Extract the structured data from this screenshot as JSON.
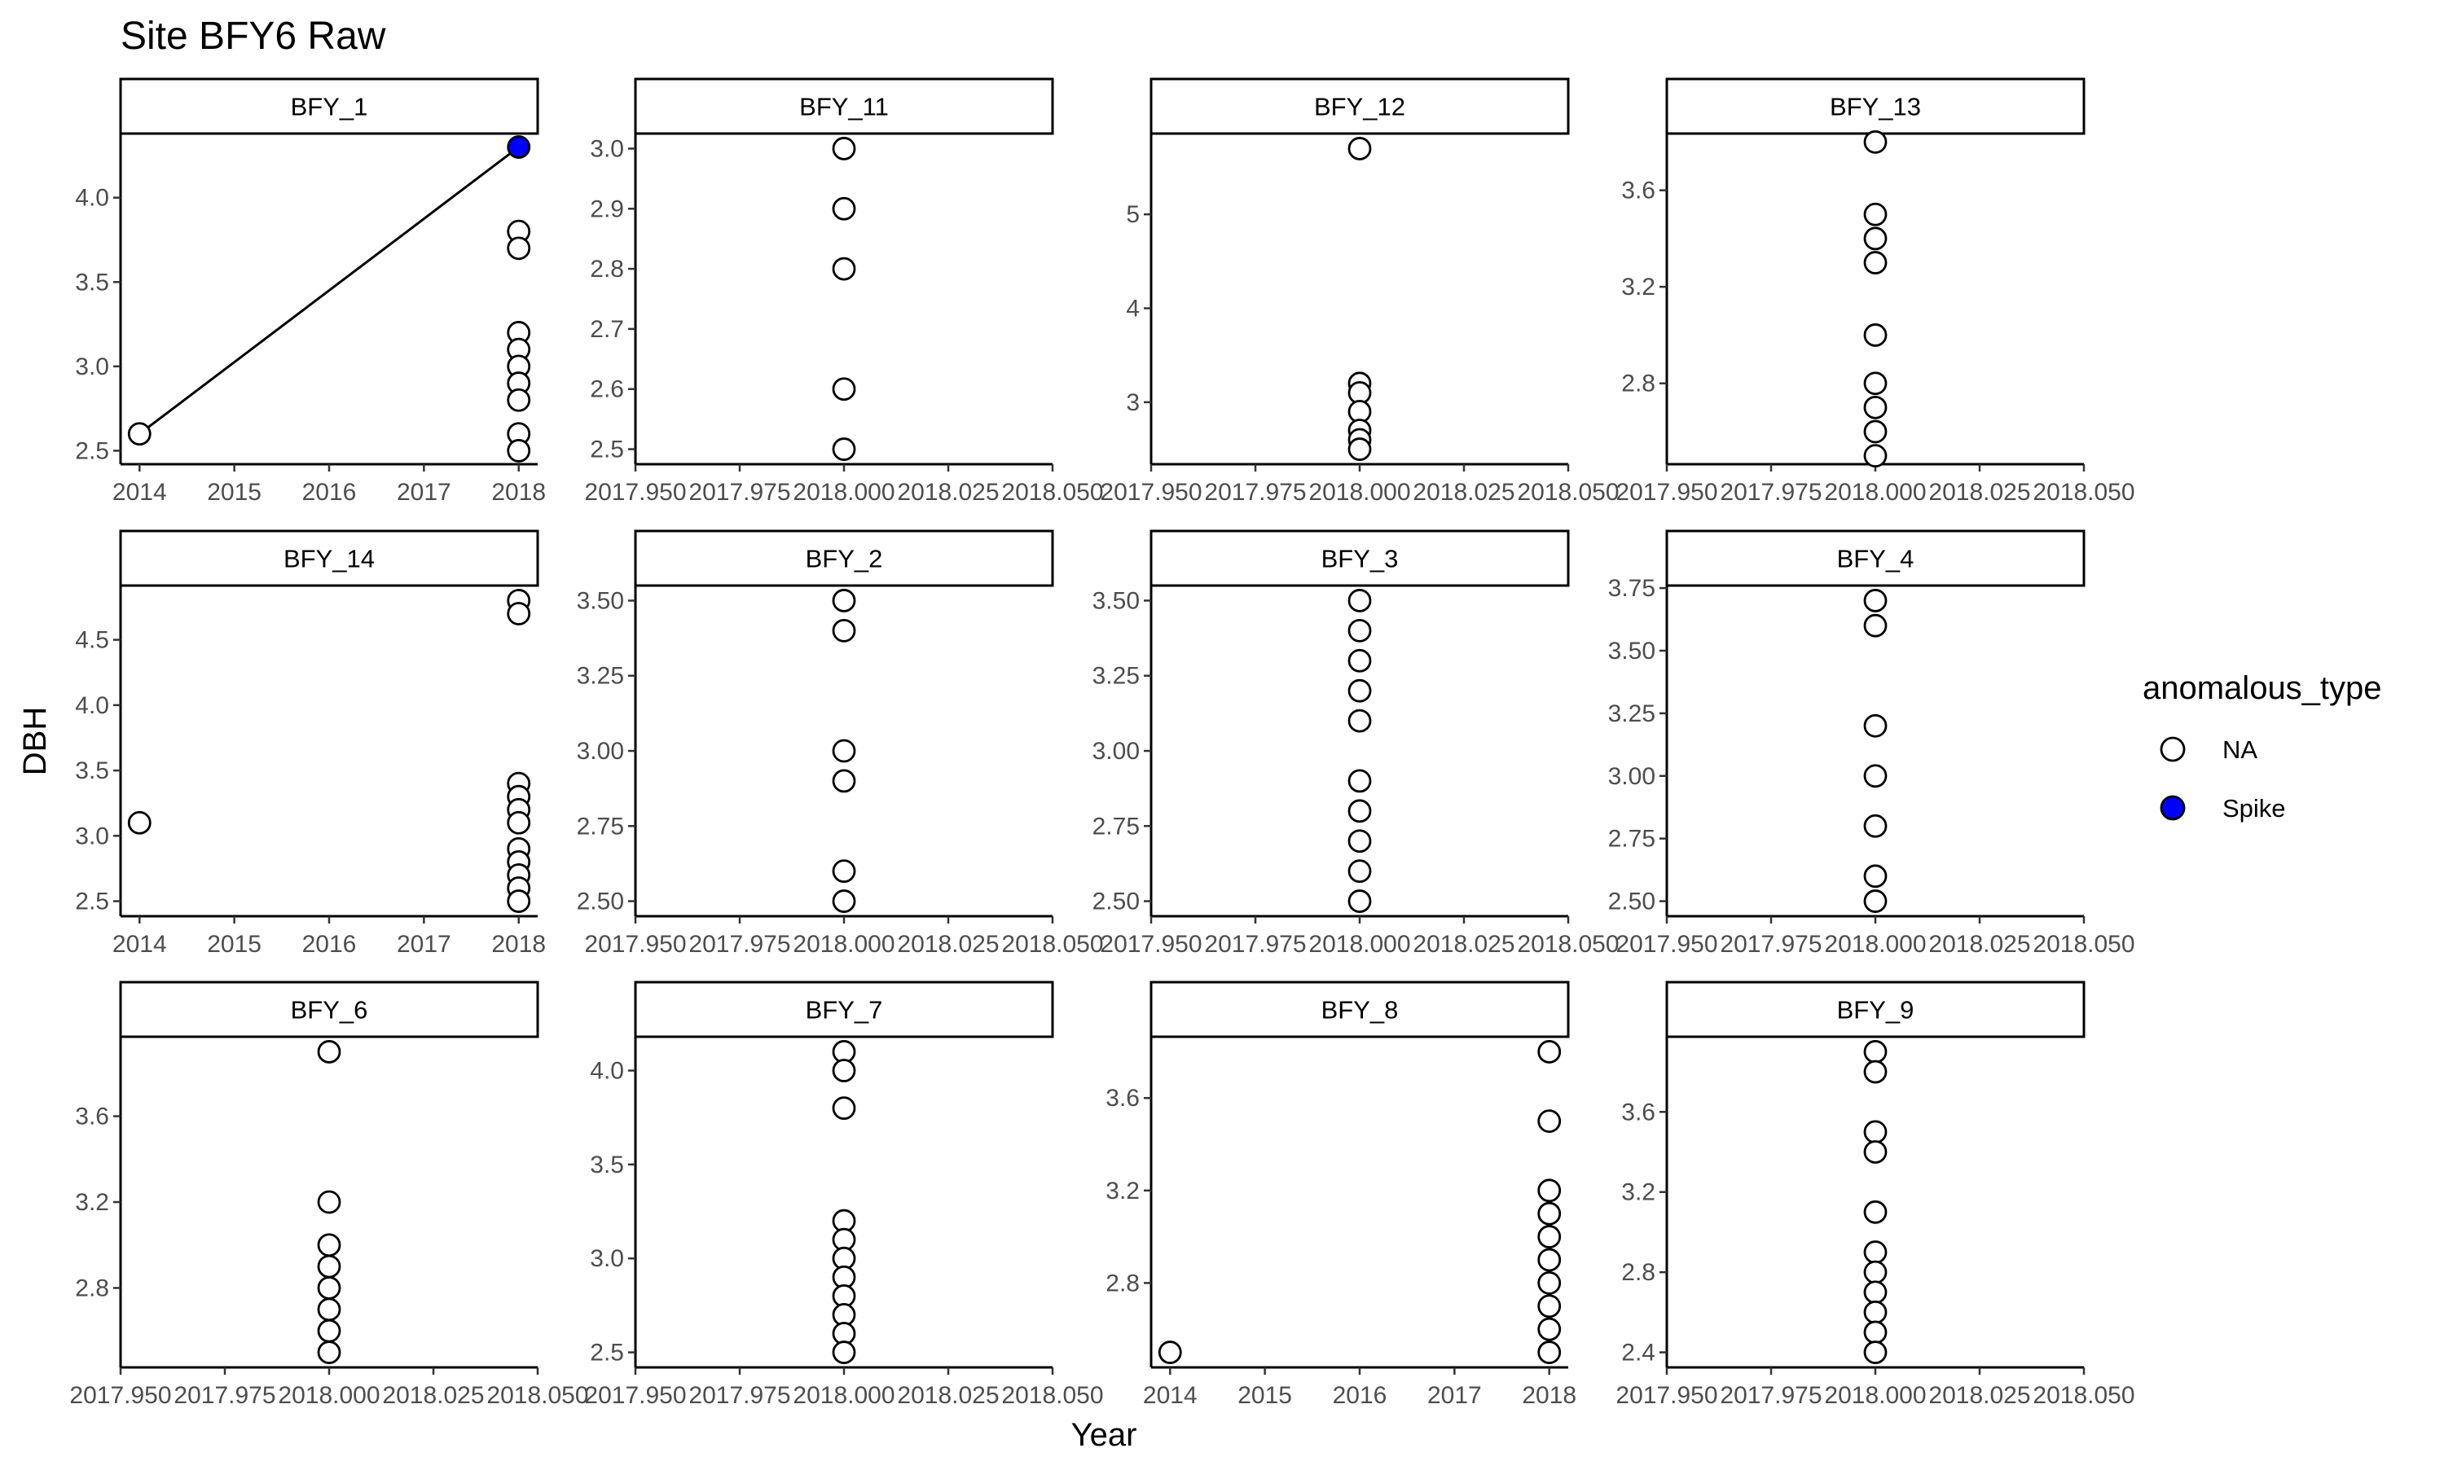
{
  "chart_data": {
    "type": "scatter",
    "title": "Site BFY6 Raw",
    "xlabel": "Year",
    "ylabel": "DBH",
    "grid": false,
    "legend": {
      "title": "anomalous_type",
      "position": "right",
      "entries": [
        {
          "label": "NA",
          "fill": "#ffffff"
        },
        {
          "label": "Spike",
          "fill": "#0000ff"
        }
      ]
    },
    "panels": [
      {
        "name": "BFY_1",
        "xlim": [
          2013.8,
          2018.2
        ],
        "ylim": [
          2.42,
          4.38
        ],
        "xticks": [
          "2014",
          "2015",
          "2016",
          "2017",
          "2018"
        ],
        "xtick_values": [
          2014,
          2015,
          2016,
          2017,
          2018
        ],
        "yticks": [
          "2.5",
          "3.0",
          "3.5",
          "4.0"
        ],
        "ytick_values": [
          2.5,
          3.0,
          3.5,
          4.0
        ],
        "line": [
          [
            2014,
            2.6
          ],
          [
            2018,
            4.3
          ]
        ],
        "points": [
          [
            2014,
            2.6,
            "NA"
          ],
          [
            2018,
            4.3,
            "Spike"
          ],
          [
            2018,
            3.8,
            "NA"
          ],
          [
            2018,
            3.7,
            "NA"
          ],
          [
            2018,
            3.2,
            "NA"
          ],
          [
            2018,
            3.1,
            "NA"
          ],
          [
            2018,
            3.0,
            "NA"
          ],
          [
            2018,
            2.9,
            "NA"
          ],
          [
            2018,
            2.8,
            "NA"
          ],
          [
            2018,
            2.6,
            "NA"
          ],
          [
            2018,
            2.5,
            "NA"
          ]
        ]
      },
      {
        "name": "BFY_11",
        "xlim": [
          2017.95,
          2018.05
        ],
        "ylim": [
          2.475,
          3.025
        ],
        "xticks": [
          "2017.950",
          "2017.975",
          "2018.000",
          "2018.025",
          "2018.050"
        ],
        "xtick_values": [
          2017.95,
          2017.975,
          2018.0,
          2018.025,
          2018.05
        ],
        "yticks": [
          "2.5",
          "2.6",
          "2.7",
          "2.8",
          "2.9",
          "3.0"
        ],
        "ytick_values": [
          2.5,
          2.6,
          2.7,
          2.8,
          2.9,
          3.0
        ],
        "points": [
          [
            2018,
            3.0,
            "NA"
          ],
          [
            2018,
            2.9,
            "NA"
          ],
          [
            2018,
            2.8,
            "NA"
          ],
          [
            2018,
            2.6,
            "NA"
          ],
          [
            2018,
            2.5,
            "NA"
          ]
        ]
      },
      {
        "name": "BFY_12",
        "xlim": [
          2017.95,
          2018.05
        ],
        "ylim": [
          2.34,
          5.86
        ],
        "xticks": [
          "2017.950",
          "2017.975",
          "2018.000",
          "2018.025",
          "2018.050"
        ],
        "xtick_values": [
          2017.95,
          2017.975,
          2018.0,
          2018.025,
          2018.05
        ],
        "yticks": [
          "3",
          "4",
          "5"
        ],
        "ytick_values": [
          3,
          4,
          5
        ],
        "points": [
          [
            2018,
            5.7,
            "NA"
          ],
          [
            2018,
            3.2,
            "NA"
          ],
          [
            2018,
            3.1,
            "NA"
          ],
          [
            2018,
            2.9,
            "NA"
          ],
          [
            2018,
            2.7,
            "NA"
          ],
          [
            2018,
            2.6,
            "NA"
          ],
          [
            2018,
            2.5,
            "NA"
          ]
        ]
      },
      {
        "name": "BFY_13",
        "xlim": [
          2017.95,
          2018.05
        ],
        "ylim": [
          2.465,
          3.835
        ],
        "xticks": [
          "2017.950",
          "2017.975",
          "2018.000",
          "2018.025",
          "2018.050"
        ],
        "xtick_values": [
          2017.95,
          2017.975,
          2018.0,
          2018.025,
          2018.05
        ],
        "yticks": [
          "2.8",
          "3.2",
          "3.6"
        ],
        "ytick_values": [
          2.8,
          3.2,
          3.6
        ],
        "points": [
          [
            2018,
            3.8,
            "NA"
          ],
          [
            2018,
            3.5,
            "NA"
          ],
          [
            2018,
            3.4,
            "NA"
          ],
          [
            2018,
            3.3,
            "NA"
          ],
          [
            2018,
            3.0,
            "NA"
          ],
          [
            2018,
            2.8,
            "NA"
          ],
          [
            2018,
            2.7,
            "NA"
          ],
          [
            2018,
            2.6,
            "NA"
          ],
          [
            2018,
            2.5,
            "NA"
          ]
        ]
      },
      {
        "name": "BFY_14",
        "xlim": [
          2013.8,
          2018.2
        ],
        "ylim": [
          2.385,
          4.915
        ],
        "xticks": [
          "2014",
          "2015",
          "2016",
          "2017",
          "2018"
        ],
        "xtick_values": [
          2014,
          2015,
          2016,
          2017,
          2018
        ],
        "yticks": [
          "2.5",
          "3.0",
          "3.5",
          "4.0",
          "4.5"
        ],
        "ytick_values": [
          2.5,
          3.0,
          3.5,
          4.0,
          4.5
        ],
        "points": [
          [
            2014,
            3.1,
            "NA"
          ],
          [
            2018,
            4.8,
            "NA"
          ],
          [
            2018,
            4.7,
            "NA"
          ],
          [
            2018,
            3.4,
            "NA"
          ],
          [
            2018,
            3.3,
            "NA"
          ],
          [
            2018,
            3.2,
            "NA"
          ],
          [
            2018,
            3.1,
            "NA"
          ],
          [
            2018,
            2.9,
            "NA"
          ],
          [
            2018,
            2.8,
            "NA"
          ],
          [
            2018,
            2.7,
            "NA"
          ],
          [
            2018,
            2.6,
            "NA"
          ],
          [
            2018,
            2.5,
            "NA"
          ]
        ]
      },
      {
        "name": "BFY_2",
        "xlim": [
          2017.95,
          2018.05
        ],
        "ylim": [
          2.45,
          3.55
        ],
        "xticks": [
          "2017.950",
          "2017.975",
          "2018.000",
          "2018.025",
          "2018.050"
        ],
        "xtick_values": [
          2017.95,
          2017.975,
          2018.0,
          2018.025,
          2018.05
        ],
        "yticks": [
          "2.50",
          "2.75",
          "3.00",
          "3.25",
          "3.50"
        ],
        "ytick_values": [
          2.5,
          2.75,
          3.0,
          3.25,
          3.5
        ],
        "points": [
          [
            2018,
            3.5,
            "NA"
          ],
          [
            2018,
            3.4,
            "NA"
          ],
          [
            2018,
            3.0,
            "NA"
          ],
          [
            2018,
            2.9,
            "NA"
          ],
          [
            2018,
            2.6,
            "NA"
          ],
          [
            2018,
            2.5,
            "NA"
          ]
        ]
      },
      {
        "name": "BFY_3",
        "xlim": [
          2017.95,
          2018.05
        ],
        "ylim": [
          2.45,
          3.55
        ],
        "xticks": [
          "2017.950",
          "2017.975",
          "2018.000",
          "2018.025",
          "2018.050"
        ],
        "xtick_values": [
          2017.95,
          2017.975,
          2018.0,
          2018.025,
          2018.05
        ],
        "yticks": [
          "2.50",
          "2.75",
          "3.00",
          "3.25",
          "3.50"
        ],
        "ytick_values": [
          2.5,
          2.75,
          3.0,
          3.25,
          3.5
        ],
        "points": [
          [
            2018,
            3.5,
            "NA"
          ],
          [
            2018,
            3.4,
            "NA"
          ],
          [
            2018,
            3.3,
            "NA"
          ],
          [
            2018,
            3.2,
            "NA"
          ],
          [
            2018,
            3.1,
            "NA"
          ],
          [
            2018,
            2.9,
            "NA"
          ],
          [
            2018,
            2.8,
            "NA"
          ],
          [
            2018,
            2.7,
            "NA"
          ],
          [
            2018,
            2.6,
            "NA"
          ],
          [
            2018,
            2.5,
            "NA"
          ]
        ]
      },
      {
        "name": "BFY_4",
        "xlim": [
          2017.95,
          2018.05
        ],
        "ylim": [
          2.44,
          3.76
        ],
        "xticks": [
          "2017.950",
          "2017.975",
          "2018.000",
          "2018.025",
          "2018.050"
        ],
        "xtick_values": [
          2017.95,
          2017.975,
          2018.0,
          2018.025,
          2018.05
        ],
        "yticks": [
          "2.50",
          "2.75",
          "3.00",
          "3.25",
          "3.50",
          "3.75"
        ],
        "ytick_values": [
          2.5,
          2.75,
          3.0,
          3.25,
          3.5,
          3.75
        ],
        "points": [
          [
            2018,
            3.7,
            "NA"
          ],
          [
            2018,
            3.6,
            "NA"
          ],
          [
            2018,
            3.2,
            "NA"
          ],
          [
            2018,
            3.0,
            "NA"
          ],
          [
            2018,
            2.8,
            "NA"
          ],
          [
            2018,
            2.6,
            "NA"
          ],
          [
            2018,
            2.5,
            "NA"
          ]
        ]
      },
      {
        "name": "BFY_6",
        "xlim": [
          2017.95,
          2018.05
        ],
        "ylim": [
          2.43,
          3.97
        ],
        "xticks": [
          "2017.950",
          "2017.975",
          "2018.000",
          "2018.025",
          "2018.050"
        ],
        "xtick_values": [
          2017.95,
          2017.975,
          2018.0,
          2018.025,
          2018.05
        ],
        "yticks": [
          "2.8",
          "3.2",
          "3.6"
        ],
        "ytick_values": [
          2.8,
          3.2,
          3.6
        ],
        "points": [
          [
            2018,
            3.9,
            "NA"
          ],
          [
            2018,
            3.2,
            "NA"
          ],
          [
            2018,
            3.0,
            "NA"
          ],
          [
            2018,
            2.9,
            "NA"
          ],
          [
            2018,
            2.8,
            "NA"
          ],
          [
            2018,
            2.7,
            "NA"
          ],
          [
            2018,
            2.6,
            "NA"
          ],
          [
            2018,
            2.5,
            "NA"
          ]
        ]
      },
      {
        "name": "BFY_7",
        "xlim": [
          2017.95,
          2018.05
        ],
        "ylim": [
          2.42,
          4.18
        ],
        "xticks": [
          "2017.950",
          "2017.975",
          "2018.000",
          "2018.025",
          "2018.050"
        ],
        "xtick_values": [
          2017.95,
          2017.975,
          2018.0,
          2018.025,
          2018.05
        ],
        "yticks": [
          "2.5",
          "3.0",
          "3.5",
          "4.0"
        ],
        "ytick_values": [
          2.5,
          3.0,
          3.5,
          4.0
        ],
        "points": [
          [
            2018,
            4.1,
            "NA"
          ],
          [
            2018,
            4.0,
            "NA"
          ],
          [
            2018,
            3.8,
            "NA"
          ],
          [
            2018,
            3.2,
            "NA"
          ],
          [
            2018,
            3.1,
            "NA"
          ],
          [
            2018,
            3.0,
            "NA"
          ],
          [
            2018,
            2.9,
            "NA"
          ],
          [
            2018,
            2.8,
            "NA"
          ],
          [
            2018,
            2.7,
            "NA"
          ],
          [
            2018,
            2.6,
            "NA"
          ],
          [
            2018,
            2.5,
            "NA"
          ]
        ]
      },
      {
        "name": "BFY_8",
        "xlim": [
          2013.8,
          2018.2
        ],
        "ylim": [
          2.435,
          3.865
        ],
        "xticks": [
          "2014",
          "2015",
          "2016",
          "2017",
          "2018"
        ],
        "xtick_values": [
          2014,
          2015,
          2016,
          2017,
          2018
        ],
        "yticks": [
          "2.8",
          "3.2",
          "3.6"
        ],
        "ytick_values": [
          2.8,
          3.2,
          3.6
        ],
        "points": [
          [
            2014,
            2.5,
            "NA"
          ],
          [
            2018,
            3.8,
            "NA"
          ],
          [
            2018,
            3.5,
            "NA"
          ],
          [
            2018,
            3.2,
            "NA"
          ],
          [
            2018,
            3.1,
            "NA"
          ],
          [
            2018,
            3.0,
            "NA"
          ],
          [
            2018,
            2.9,
            "NA"
          ],
          [
            2018,
            2.8,
            "NA"
          ],
          [
            2018,
            2.7,
            "NA"
          ],
          [
            2018,
            2.6,
            "NA"
          ],
          [
            2018,
            2.5,
            "NA"
          ]
        ]
      },
      {
        "name": "BFY_9",
        "xlim": [
          2017.95,
          2018.05
        ],
        "ylim": [
          2.325,
          3.975
        ],
        "xticks": [
          "2017.950",
          "2017.975",
          "2018.000",
          "2018.025",
          "2018.050"
        ],
        "xtick_values": [
          2017.95,
          2017.975,
          2018.0,
          2018.025,
          2018.05
        ],
        "yticks": [
          "2.4",
          "2.8",
          "3.2",
          "3.6"
        ],
        "ytick_values": [
          2.4,
          2.8,
          3.2,
          3.6
        ],
        "points": [
          [
            2018,
            3.9,
            "NA"
          ],
          [
            2018,
            3.8,
            "NA"
          ],
          [
            2018,
            3.5,
            "NA"
          ],
          [
            2018,
            3.4,
            "NA"
          ],
          [
            2018,
            3.1,
            "NA"
          ],
          [
            2018,
            2.9,
            "NA"
          ],
          [
            2018,
            2.8,
            "NA"
          ],
          [
            2018,
            2.7,
            "NA"
          ],
          [
            2018,
            2.6,
            "NA"
          ],
          [
            2018,
            2.5,
            "NA"
          ],
          [
            2018,
            2.4,
            "NA"
          ]
        ]
      }
    ]
  }
}
